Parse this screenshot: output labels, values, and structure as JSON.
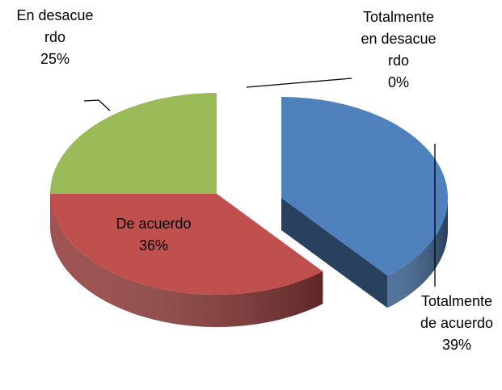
{
  "chart_data": {
    "type": "pie",
    "categories": [
      "Totalmente de acuerdo",
      "De acuerdo",
      "En desacuerdo",
      "Totalmente en desacuerdo"
    ],
    "values": [
      39,
      36,
      25,
      0
    ],
    "value_labels": [
      "39%",
      "36%",
      "25%",
      "0%"
    ],
    "colors": [
      "#4f81bd",
      "#c0504d",
      "#9bbb59",
      "#8064a2"
    ],
    "three_d": true
  }
}
